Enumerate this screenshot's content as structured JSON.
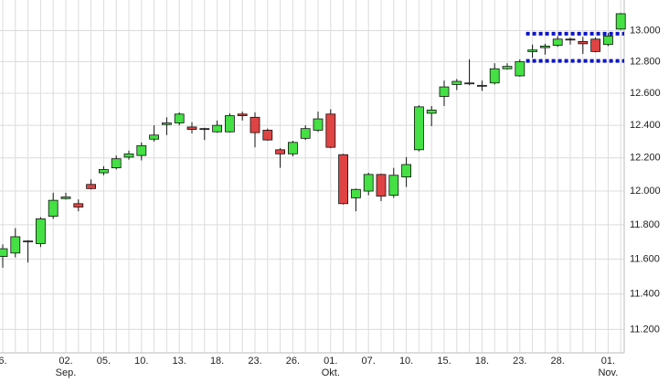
{
  "chart_data": {
    "type": "candlestick",
    "log_scale": true,
    "grid": true,
    "up_color": "#44e044",
    "down_color": "#e04343",
    "level_color": "#0a14c8",
    "levels": [
      12980,
      12805
    ],
    "categories": [
      "6.",
      null,
      null,
      null,
      null,
      "02.",
      null,
      null,
      "05.",
      null,
      null,
      "10.",
      null,
      null,
      "13.",
      null,
      null,
      "18.",
      null,
      null,
      "23.",
      null,
      null,
      "26.",
      null,
      null,
      "01.",
      null,
      null,
      "07.",
      null,
      null,
      "10.",
      null,
      null,
      "15.",
      null,
      null,
      "18.",
      null,
      null,
      "23.",
      null,
      null,
      "28.",
      null,
      null,
      null,
      "01.",
      null
    ],
    "months": [
      null,
      null,
      null,
      null,
      null,
      "Sep.",
      null,
      null,
      null,
      null,
      null,
      null,
      null,
      null,
      null,
      null,
      null,
      null,
      null,
      null,
      null,
      null,
      null,
      null,
      null,
      null,
      "Okt.",
      null,
      null,
      null,
      null,
      null,
      null,
      null,
      null,
      null,
      null,
      null,
      null,
      null,
      null,
      null,
      null,
      null,
      null,
      null,
      null,
      null,
      "Nov.",
      null
    ],
    "open": [
      11615,
      11635,
      11700,
      11690,
      11850,
      11955,
      11925,
      12040,
      12110,
      12140,
      12205,
      12215,
      12315,
      12405,
      12415,
      12390,
      12380,
      12360,
      12360,
      12470,
      12450,
      12370,
      12250,
      12225,
      12320,
      12370,
      12470,
      12220,
      11960,
      12000,
      12100,
      11975,
      12085,
      12250,
      12475,
      12580,
      12655,
      12665,
      12650,
      12665,
      12755,
      12710,
      12865,
      12890,
      12905,
      12945,
      12930,
      12945,
      12910,
      13010
    ],
    "high": [
      11685,
      11780,
      11710,
      11845,
      11990,
      11990,
      11950,
      12070,
      12150,
      12215,
      12245,
      12295,
      12400,
      12450,
      12480,
      12420,
      12385,
      12430,
      12475,
      12485,
      12480,
      12380,
      12260,
      12305,
      12400,
      12485,
      12500,
      12225,
      12015,
      12110,
      12105,
      12140,
      12205,
      12525,
      12520,
      12680,
      12690,
      12815,
      12680,
      12790,
      12790,
      12815,
      12910,
      12915,
      12965,
      12955,
      12960,
      12955,
      12985,
      13115
    ],
    "low": [
      11550,
      11610,
      11580,
      11670,
      11835,
      11950,
      11880,
      12010,
      12095,
      12130,
      12190,
      12185,
      12300,
      12340,
      12400,
      12350,
      12310,
      12355,
      12355,
      12430,
      12265,
      12305,
      12140,
      12210,
      12310,
      12360,
      12260,
      11920,
      11880,
      11975,
      11940,
      11960,
      12025,
      12240,
      12395,
      12520,
      12620,
      12650,
      12615,
      12655,
      12750,
      12705,
      12825,
      12845,
      12895,
      12910,
      12850,
      12860,
      12900,
      13005
    ],
    "close": [
      11660,
      11730,
      11705,
      11835,
      11945,
      11965,
      11905,
      12015,
      12130,
      12195,
      12225,
      12275,
      12340,
      12415,
      12470,
      12375,
      12375,
      12400,
      12460,
      12460,
      12355,
      12310,
      12225,
      12295,
      12380,
      12440,
      12265,
      11925,
      12010,
      12100,
      11970,
      12095,
      12160,
      12515,
      12495,
      12640,
      12675,
      12665,
      12650,
      12755,
      12770,
      12800,
      12875,
      12900,
      12945,
      12940,
      12915,
      12865,
      12965,
      13110
    ],
    "ylim": [
      11070,
      13200
    ],
    "yticks": [
      {
        "value": 11200,
        "label": "11.200"
      },
      {
        "value": 11400,
        "label": "11.400"
      },
      {
        "value": 11600,
        "label": "11.600"
      },
      {
        "value": 11800,
        "label": "11.800"
      },
      {
        "value": 12000,
        "label": "12.000"
      },
      {
        "value": 12200,
        "label": "12.200"
      },
      {
        "value": 12400,
        "label": "12.400"
      },
      {
        "value": 12600,
        "label": "12.600"
      },
      {
        "value": 12800,
        "label": "12.800"
      },
      {
        "value": 13000,
        "label": "13.000"
      }
    ]
  }
}
